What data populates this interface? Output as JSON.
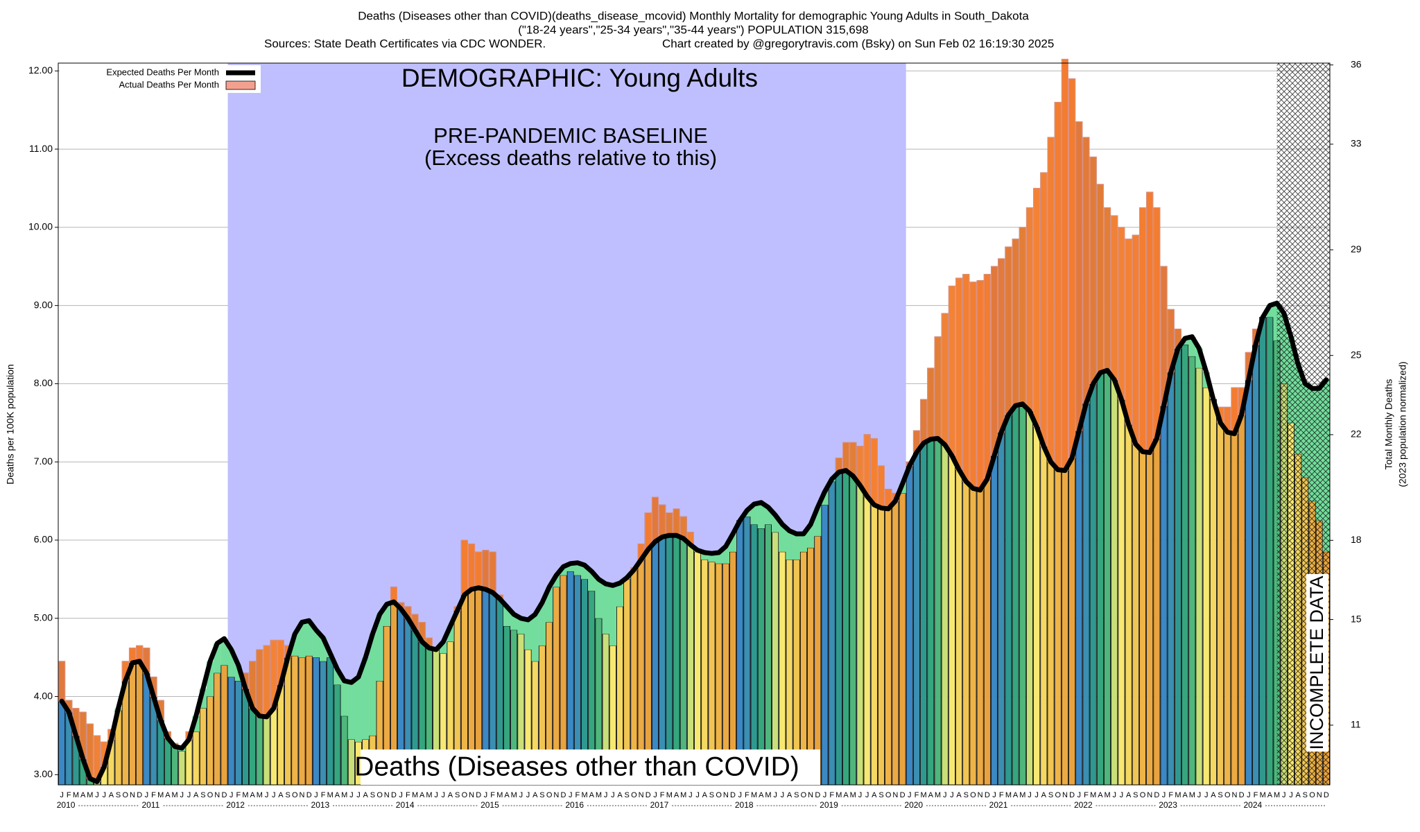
{
  "chart_data": {
    "type": "bar",
    "title": "Deaths (Diseases other than COVID)(deaths_disease_mcovid) Monthly Mortality for demographic Young Adults in South_Dakota",
    "subtitle": "(\"18-24 years\",\"25-34 years\",\"35-44 years\") POPULATION 315,698",
    "source": "Sources: State Death Certificates via CDC WONDER.",
    "credit": "Chart created by @gregorytravis.com (Bsky) on Sun Feb 02 16:19:30 2025",
    "y_label": "Deaths per 100K population",
    "y2_label": "Total Monthly Deaths",
    "y2_label_note": "(2023 population normalized)",
    "annotations": {
      "demographic": "DEMOGRAPHIC: Young Adults",
      "baseline": "PRE-PANDEMIC BASELINE",
      "baseline_note": "(Excess deaths relative to this)",
      "metric": "Deaths (Diseases other than COVID)",
      "incomplete": "INCOMPLETE DATA"
    },
    "legend": "upper left",
    "grid": true,
    "ylim": [
      2.87,
      12.1
    ],
    "yticks": [
      {
        "value": 3,
        "label": "3.00"
      },
      {
        "value": 4,
        "label": "4.00"
      },
      {
        "value": 5,
        "label": "5.00"
      },
      {
        "value": 6,
        "label": "6.00"
      },
      {
        "value": 7,
        "label": "7.00"
      },
      {
        "value": 8,
        "label": "8.00"
      },
      {
        "value": 9,
        "label": "9.00"
      },
      {
        "value": 10,
        "label": "10.00"
      },
      {
        "value": 11,
        "label": "11.00"
      },
      {
        "value": 12,
        "label": "12.00"
      }
    ],
    "y2lim": [
      8.74,
      36.07
    ],
    "y2ticks": [
      11,
      15,
      18,
      22,
      25,
      29,
      33,
      36
    ],
    "baseline_color": "#bfbfff",
    "excess_color": "#f4782f",
    "deficit_color": "#72dd9c",
    "month_colors": [
      "#3b88c4",
      "#3a8fb2",
      "#30998f",
      "#35a67e",
      "#4fb67c",
      "#c9df78",
      "#f7e872",
      "#f4d862",
      "#f1c553",
      "#eeb447",
      "#ebaa44",
      "#e8a33f"
    ],
    "years": [
      "2010",
      "2011",
      "2012",
      "2013",
      "2014",
      "2015",
      "2016",
      "2017",
      "2018",
      "2019",
      "2020",
      "2021",
      "2022",
      "2023",
      "2024"
    ],
    "categories": [
      "J",
      "F",
      "M",
      "A",
      "M",
      "J",
      "J",
      "A",
      "S",
      "O",
      "N",
      "D",
      "J",
      "F",
      "M",
      "A",
      "M",
      "J",
      "J",
      "A",
      "S",
      "O",
      "N",
      "D",
      "J",
      "F",
      "M",
      "A",
      "M",
      "J",
      "J",
      "A",
      "S",
      "O",
      "N",
      "D",
      "J",
      "F",
      "M",
      "A",
      "M",
      "J",
      "J",
      "A",
      "S",
      "O",
      "N",
      "D",
      "J",
      "F",
      "M",
      "A",
      "M",
      "J",
      "J",
      "A",
      "S",
      "O",
      "N",
      "D",
      "J",
      "F",
      "M",
      "A",
      "M",
      "J",
      "J",
      "A",
      "S",
      "O",
      "N",
      "D",
      "J",
      "F",
      "M",
      "A",
      "M",
      "J",
      "J",
      "A",
      "S",
      "O",
      "N",
      "D",
      "J",
      "F",
      "M",
      "A",
      "M",
      "J",
      "J",
      "A",
      "S",
      "O",
      "N",
      "D",
      "J",
      "F",
      "M",
      "A",
      "M",
      "J",
      "J",
      "A",
      "S",
      "O",
      "N",
      "D",
      "J",
      "F",
      "M",
      "A",
      "M",
      "J",
      "J",
      "A",
      "S",
      "O",
      "N",
      "D",
      "J",
      "F",
      "M",
      "A",
      "M",
      "J",
      "J",
      "A",
      "S",
      "O",
      "N",
      "D",
      "J",
      "F",
      "M",
      "A",
      "M",
      "J",
      "J",
      "A",
      "S",
      "O",
      "N",
      "D",
      "J",
      "F",
      "M",
      "A",
      "M",
      "J",
      "J",
      "A",
      "S",
      "O",
      "N",
      "D",
      "J",
      "F",
      "M",
      "A",
      "M",
      "J",
      "J",
      "A",
      "S",
      "O",
      "N",
      "D",
      "J",
      "F",
      "M",
      "A",
      "M",
      "J",
      "J",
      "A",
      "S",
      "O",
      "N",
      "D"
    ],
    "series": [
      {
        "name": "Expected Deaths Per Month",
        "type": "line",
        "color": "#000000",
        "values": [
          3.94,
          3.8,
          3.5,
          3.2,
          2.95,
          2.91,
          3.1,
          3.45,
          3.85,
          4.2,
          4.43,
          4.45,
          4.3,
          4.0,
          3.7,
          3.47,
          3.36,
          3.34,
          3.45,
          3.75,
          4.1,
          4.45,
          4.68,
          4.74,
          4.6,
          4.4,
          4.1,
          3.85,
          3.75,
          3.74,
          3.85,
          4.15,
          4.5,
          4.8,
          4.95,
          4.97,
          4.85,
          4.75,
          4.55,
          4.35,
          4.2,
          4.18,
          4.25,
          4.5,
          4.8,
          5.05,
          5.18,
          5.21,
          5.12,
          5.0,
          4.85,
          4.7,
          4.62,
          4.6,
          4.7,
          4.9,
          5.1,
          5.3,
          5.37,
          5.39,
          5.37,
          5.33,
          5.25,
          5.15,
          5.05,
          5.0,
          4.98,
          5.05,
          5.2,
          5.4,
          5.55,
          5.66,
          5.7,
          5.71,
          5.68,
          5.6,
          5.5,
          5.44,
          5.42,
          5.45,
          5.52,
          5.62,
          5.75,
          5.88,
          5.98,
          6.04,
          6.06,
          6.06,
          6.02,
          5.94,
          5.87,
          5.84,
          5.83,
          5.84,
          5.92,
          6.08,
          6.25,
          6.38,
          6.46,
          6.48,
          6.42,
          6.32,
          6.2,
          6.12,
          6.08,
          6.08,
          6.2,
          6.42,
          6.62,
          6.78,
          6.87,
          6.89,
          6.82,
          6.7,
          6.56,
          6.45,
          6.41,
          6.4,
          6.5,
          6.72,
          6.95,
          7.12,
          7.24,
          7.29,
          7.3,
          7.22,
          7.08,
          6.9,
          6.75,
          6.66,
          6.64,
          6.78,
          7.08,
          7.38,
          7.6,
          7.72,
          7.74,
          7.65,
          7.45,
          7.2,
          7.0,
          6.9,
          6.89,
          7.05,
          7.4,
          7.75,
          8.0,
          8.14,
          8.17,
          8.05,
          7.8,
          7.48,
          7.23,
          7.13,
          7.12,
          7.3,
          7.72,
          8.15,
          8.45,
          8.58,
          8.6,
          8.45,
          8.15,
          7.8,
          7.5,
          7.38,
          7.36,
          7.6,
          8.05,
          8.5,
          8.85,
          9.0,
          9.03,
          8.9,
          8.6,
          8.25,
          8.0,
          7.94,
          7.94,
          8.05
        ]
      },
      {
        "name": "Actual Deaths Per Month",
        "type": "bar",
        "color": "#f4a090",
        "values": [
          4.45,
          3.95,
          3.85,
          3.8,
          3.65,
          3.5,
          3.42,
          3.58,
          3.82,
          4.45,
          4.62,
          4.65,
          4.62,
          4.25,
          3.95,
          3.55,
          3.4,
          3.3,
          3.55,
          3.55,
          3.85,
          4.0,
          4.3,
          4.4,
          4.25,
          4.2,
          4.3,
          4.45,
          4.6,
          4.65,
          4.72,
          4.72,
          4.65,
          4.52,
          4.5,
          4.52,
          4.5,
          4.45,
          4.5,
          4.15,
          3.75,
          3.45,
          3.42,
          3.45,
          3.5,
          4.2,
          4.9,
          5.4,
          5.2,
          5.15,
          5.05,
          4.95,
          4.75,
          4.6,
          4.55,
          4.7,
          5.15,
          6.0,
          5.95,
          5.85,
          5.87,
          5.85,
          5.3,
          4.9,
          4.85,
          4.8,
          4.6,
          4.45,
          4.65,
          4.95,
          5.4,
          5.55,
          5.6,
          5.55,
          5.5,
          5.35,
          5.0,
          4.8,
          4.65,
          5.15,
          5.5,
          5.65,
          5.95,
          6.35,
          6.55,
          6.45,
          6.35,
          6.4,
          6.3,
          6.1,
          5.85,
          5.75,
          5.72,
          5.7,
          5.7,
          5.85,
          6.25,
          6.3,
          6.2,
          6.15,
          6.2,
          6.1,
          5.85,
          5.75,
          5.75,
          5.85,
          5.9,
          6.05,
          6.45,
          6.75,
          7.05,
          7.25,
          7.25,
          7.2,
          7.35,
          7.3,
          6.95,
          6.65,
          6.6,
          6.6,
          7.0,
          7.4,
          7.8,
          8.2,
          8.6,
          8.9,
          9.25,
          9.35,
          9.4,
          9.3,
          9.32,
          9.4,
          9.5,
          9.6,
          9.75,
          9.85,
          10.0,
          10.25,
          10.5,
          10.7,
          11.15,
          11.6,
          12.15,
          11.9,
          11.35,
          11.15,
          10.9,
          10.55,
          10.25,
          10.15,
          10.0,
          9.85,
          9.9,
          10.25,
          10.45,
          10.25,
          9.5,
          8.95,
          8.7,
          8.5,
          8.35,
          8.2,
          7.95,
          7.8,
          7.7,
          7.7,
          7.95,
          7.95,
          8.4,
          8.7,
          8.85,
          8.85,
          8.55,
          8.0,
          7.5,
          7.1,
          6.8,
          6.5,
          6.25,
          5.85
        ]
      }
    ]
  }
}
